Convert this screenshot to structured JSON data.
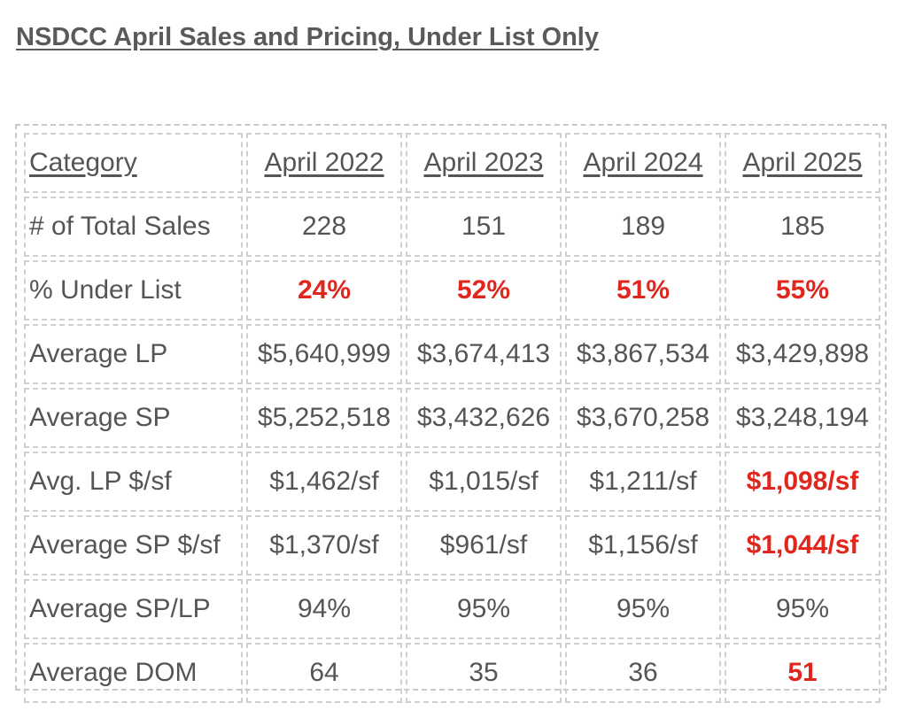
{
  "title": "NSDCC April Sales and Pricing, Under List Only",
  "table": {
    "headers": [
      "Category",
      "April 2022",
      "April 2023",
      "April 2024",
      "April 2025"
    ],
    "rows": [
      {
        "category": "# of Total Sales",
        "values": [
          "228",
          "151",
          "189",
          "185"
        ]
      },
      {
        "category": "% Under List",
        "values": [
          "24%",
          "52%",
          "51%",
          "55%"
        ]
      },
      {
        "category": "Average LP",
        "values": [
          "$5,640,999",
          "$3,674,413",
          "$3,867,534",
          "$3,429,898"
        ]
      },
      {
        "category": "Average SP",
        "values": [
          "$5,252,518",
          "$3,432,626",
          "$3,670,258",
          "$3,248,194"
        ]
      },
      {
        "category": "Avg. LP $/sf",
        "values": [
          "$1,462/sf",
          "$1,015/sf",
          "$1,211/sf",
          "$1,098/sf"
        ]
      },
      {
        "category": "Average SP $/sf",
        "values": [
          "$1,370/sf",
          "$961/sf",
          "$1,156/sf",
          "$1,044/sf"
        ]
      },
      {
        "category": "Average SP/LP",
        "values": [
          "94%",
          "95%",
          "95%",
          "95%"
        ]
      },
      {
        "category": "Average DOM",
        "values": [
          "64",
          "35",
          "36",
          "51"
        ]
      }
    ]
  },
  "colors": {
    "text": "#555555",
    "highlight": "#e0261d",
    "border": "#cfcfcf"
  }
}
